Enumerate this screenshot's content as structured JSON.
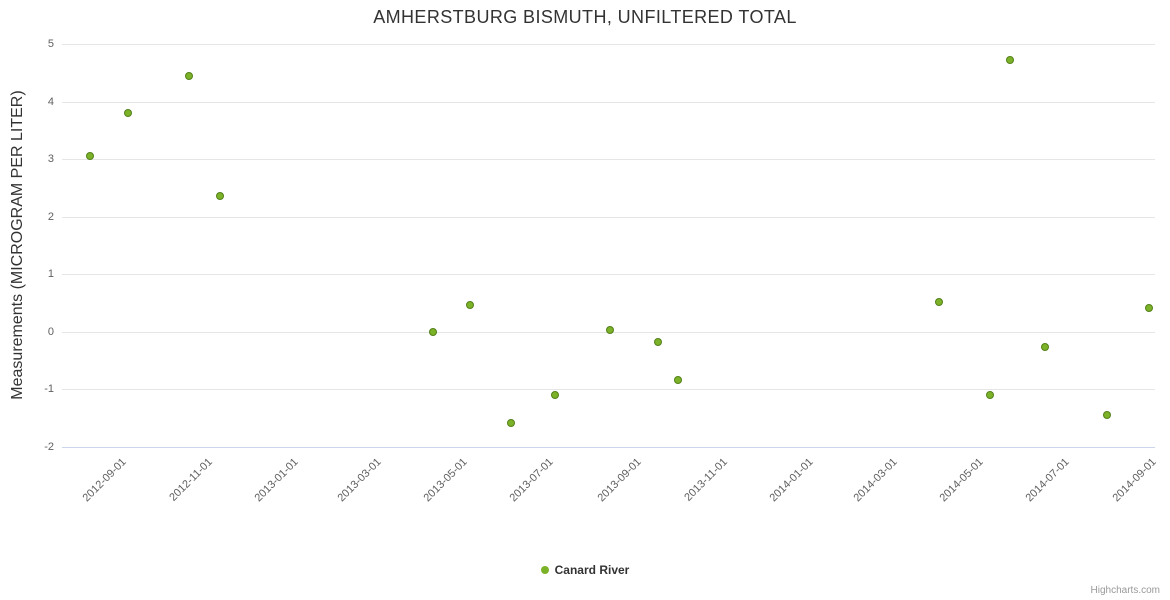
{
  "chart": {
    "title": "AMHERSTBURG BISMUTH, UNFILTERED TOTAL",
    "y_axis_title": "Measurements (MICROGRAM PER LITER)",
    "legend": [
      {
        "label": "Canard River"
      }
    ],
    "credits": "Highcharts.com"
  },
  "chart_data": {
    "type": "scatter",
    "title": "AMHERSTBURG BISMUTH, UNFILTERED TOTAL",
    "xlabel": "",
    "ylabel": "Measurements (MICROGRAM PER LITER)",
    "ylim": [
      -2,
      5
    ],
    "xlim": [
      "2012-07-22",
      "2014-09-04"
    ],
    "yticks": [
      -2,
      -1,
      0,
      1,
      2,
      3,
      4,
      5
    ],
    "xticks": [
      "2012-09-01",
      "2012-11-01",
      "2013-01-01",
      "2013-03-01",
      "2013-05-01",
      "2013-07-01",
      "2013-09-01",
      "2013-11-01",
      "2014-01-01",
      "2014-03-01",
      "2014-05-01",
      "2014-07-01",
      "2014-09-01"
    ],
    "grid": "horizontal",
    "legend_position": "bottom-center",
    "point_color": "#7cb228",
    "point_border": "#54801a",
    "series": [
      {
        "name": "Canard River",
        "points": [
          {
            "date": "2012-08-11",
            "value": 3.05
          },
          {
            "date": "2012-09-07",
            "value": 3.81
          },
          {
            "date": "2012-10-20",
            "value": 4.44
          },
          {
            "date": "2012-11-11",
            "value": 2.36
          },
          {
            "date": "2013-04-11",
            "value": -0.01
          },
          {
            "date": "2013-05-07",
            "value": 0.46
          },
          {
            "date": "2013-06-05",
            "value": -1.58
          },
          {
            "date": "2013-07-06",
            "value": -1.1
          },
          {
            "date": "2013-08-14",
            "value": 0.03
          },
          {
            "date": "2013-09-17",
            "value": -0.17
          },
          {
            "date": "2013-10-01",
            "value": -0.84
          },
          {
            "date": "2014-04-04",
            "value": 0.51
          },
          {
            "date": "2014-05-10",
            "value": -1.1
          },
          {
            "date": "2014-05-24",
            "value": 4.73
          },
          {
            "date": "2014-06-18",
            "value": -0.26
          },
          {
            "date": "2014-08-01",
            "value": -1.44
          },
          {
            "date": "2014-08-31",
            "value": 0.42
          }
        ]
      }
    ]
  }
}
